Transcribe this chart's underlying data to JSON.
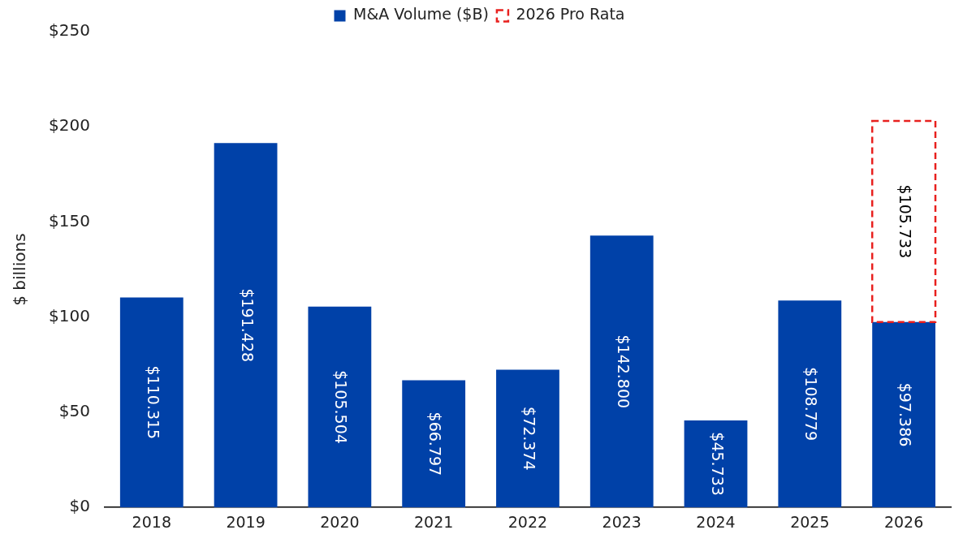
{
  "chart_data": {
    "type": "bar",
    "ylabel": "$ billions",
    "categories": [
      "2018",
      "2019",
      "2020",
      "2021",
      "2022",
      "2023",
      "2024",
      "2025",
      "2026"
    ],
    "stacked": true,
    "legend": "top",
    "grid": false,
    "ylim": [
      0,
      250
    ],
    "yticks": [
      {
        "value": 0,
        "label": "$0"
      },
      {
        "value": 50,
        "label": "$50"
      },
      {
        "value": 100,
        "label": "$100"
      },
      {
        "value": 150,
        "label": "$150"
      },
      {
        "value": 200,
        "label": "$200"
      },
      {
        "value": 250,
        "label": "$250"
      }
    ],
    "series": [
      {
        "name": "M&A Volume ($B)",
        "color": "#0041a8",
        "values": [
          110.315,
          191.428,
          105.504,
          66.797,
          72.374,
          142.8,
          45.733,
          108.779,
          97.386
        ],
        "value_labels": [
          "$110.315",
          "$191.428",
          "$105.504",
          "$66.797",
          "$72.374",
          "$142.800",
          "$45.733",
          "$108.779",
          "$97.386"
        ]
      },
      {
        "name": "2026 Pro Rata",
        "color": "#e8201e",
        "line_style": "dashed",
        "values": [
          null,
          null,
          null,
          null,
          null,
          null,
          null,
          null,
          105.733
        ],
        "value_labels": [
          null,
          null,
          null,
          null,
          null,
          null,
          null,
          null,
          "$105.733"
        ]
      }
    ]
  }
}
